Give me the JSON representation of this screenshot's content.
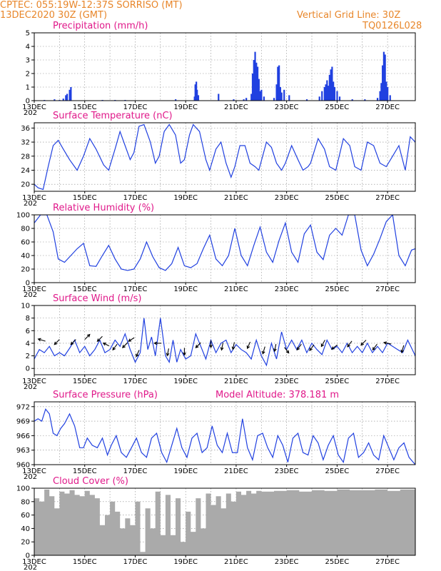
{
  "header": {
    "line1": "CPTEC:   055:19W-12:37S  SORRISO (MT)",
    "line2": "13DEC2020 30Z (GMT)",
    "grid_note": "Vertical Grid Line: 30Z",
    "code": "TQ0126L028"
  },
  "colors": {
    "header": "#e8862a",
    "title": "#e0198a",
    "line": "#2040e0",
    "bar": "#2040e0",
    "cloud": "#aaaaaa",
    "arrow": "#000000"
  },
  "x_axis": {
    "day_start": 13,
    "day_end": 28.1,
    "tick_days": [
      13,
      15,
      17,
      19,
      21,
      23,
      25,
      27
    ],
    "tick_labels": [
      "13DEC",
      "15DEC",
      "17DEC",
      "19DEC",
      "21DEC",
      "23DEC",
      "25DEC",
      "27DEC"
    ],
    "grid_days": [
      14,
      15,
      16,
      17,
      18,
      19,
      20,
      21,
      22,
      23,
      24,
      25,
      26,
      27
    ],
    "year_label": "202"
  },
  "chart_data": [
    {
      "id": "precip",
      "type": "bar",
      "title": "Precipitation (mm/h)",
      "ylim": [
        0,
        5
      ],
      "yticks": [
        0,
        1,
        2,
        3,
        4,
        5
      ],
      "x": [
        13.4,
        13.8,
        14.0,
        14.15,
        14.25,
        14.3,
        14.4,
        14.45,
        15.7,
        16.2,
        16.6,
        18.6,
        19.35,
        19.38,
        19.42,
        19.45,
        19.5,
        20.3,
        20.9,
        21.3,
        21.4,
        21.6,
        21.65,
        21.7,
        21.75,
        21.8,
        21.85,
        21.9,
        21.95,
        22.0,
        22.1,
        22.5,
        22.6,
        22.65,
        22.7,
        22.75,
        22.8,
        22.9,
        23.1,
        23.8,
        24.3,
        24.4,
        24.5,
        24.55,
        24.6,
        24.65,
        24.7,
        24.75,
        24.8,
        24.85,
        24.9,
        25.0,
        25.1,
        25.6,
        26.1,
        26.6,
        26.7,
        26.75,
        26.8,
        26.85,
        26.9,
        26.95,
        27.0,
        27.1
      ],
      "values": [
        0.05,
        0.1,
        0.05,
        0.15,
        0.4,
        0.5,
        0.8,
        1.0,
        0.05,
        0.05,
        0.05,
        0.1,
        0.3,
        1.2,
        1.4,
        0.8,
        0.4,
        0.5,
        0.1,
        0.1,
        0.2,
        0.5,
        2.0,
        3.0,
        3.6,
        2.8,
        2.5,
        1.6,
        0.7,
        0.8,
        0.3,
        0.2,
        1.2,
        2.5,
        2.6,
        1.0,
        0.6,
        0.8,
        0.4,
        0.1,
        0.3,
        0.7,
        1.0,
        1.2,
        1.5,
        1.1,
        1.9,
        2.3,
        2.5,
        1.4,
        1.0,
        0.7,
        0.3,
        0.1,
        0.1,
        0.2,
        0.7,
        1.3,
        2.6,
        3.6,
        3.4,
        1.4,
        1.0,
        0.4
      ]
    },
    {
      "id": "temp",
      "type": "line",
      "title": "Surface Temperature (nC)",
      "ylim": [
        18,
        37.5
      ],
      "yticks": [
        20,
        24,
        28,
        32,
        36
      ],
      "x": [
        13.0,
        13.15,
        13.35,
        13.55,
        13.75,
        13.95,
        14.15,
        14.4,
        14.7,
        14.95,
        15.2,
        15.45,
        15.75,
        15.95,
        16.2,
        16.4,
        16.6,
        16.8,
        16.95,
        17.15,
        17.35,
        17.6,
        17.8,
        17.95,
        18.15,
        18.35,
        18.6,
        18.8,
        18.95,
        19.15,
        19.3,
        19.55,
        19.8,
        19.95,
        20.2,
        20.4,
        20.6,
        20.8,
        20.95,
        21.15,
        21.35,
        21.55,
        21.75,
        21.9,
        22.2,
        22.4,
        22.6,
        22.8,
        22.95,
        23.2,
        23.45,
        23.65,
        23.85,
        23.95,
        24.25,
        24.5,
        24.7,
        24.95,
        25.25,
        25.5,
        25.7,
        25.95,
        26.2,
        26.45,
        26.7,
        26.95,
        27.2,
        27.45,
        27.7,
        27.9,
        28.1
      ],
      "values": [
        20,
        19,
        18.5,
        25,
        31,
        32.5,
        30,
        27,
        24,
        28,
        33,
        30,
        25.5,
        24,
        30,
        35,
        31,
        27,
        29,
        36.5,
        37,
        32,
        26,
        28,
        35,
        37,
        34,
        26,
        27,
        34,
        37,
        35,
        27,
        24,
        30,
        32,
        26,
        22,
        25,
        31,
        31,
        26,
        25,
        24,
        32,
        30.5,
        26,
        24,
        26,
        31,
        27,
        24,
        25,
        26,
        33,
        30,
        25,
        24,
        33,
        31,
        25,
        24,
        32,
        31,
        26,
        25,
        28,
        31,
        24,
        33.5,
        32
      ]
    },
    {
      "id": "rh",
      "type": "line",
      "title": "Relative Humidity (%)",
      "ylim": [
        0,
        100
      ],
      "yticks": [
        0,
        20,
        40,
        60,
        80,
        100
      ],
      "x": [
        13.0,
        13.25,
        13.5,
        13.75,
        13.95,
        14.2,
        14.45,
        14.7,
        14.95,
        15.2,
        15.45,
        15.7,
        15.95,
        16.2,
        16.45,
        16.7,
        16.95,
        17.2,
        17.45,
        17.7,
        17.95,
        18.2,
        18.45,
        18.7,
        18.95,
        19.2,
        19.45,
        19.7,
        19.95,
        20.2,
        20.45,
        20.7,
        20.95,
        21.2,
        21.45,
        21.7,
        21.95,
        22.2,
        22.45,
        22.7,
        22.95,
        23.2,
        23.45,
        23.7,
        23.95,
        24.2,
        24.45,
        24.7,
        24.95,
        25.2,
        25.45,
        25.7,
        25.95,
        26.2,
        26.45,
        26.7,
        26.95,
        27.2,
        27.45,
        27.7,
        27.95,
        28.1
      ],
      "values": [
        88,
        100,
        100,
        75,
        35,
        30,
        40,
        50,
        58,
        25,
        24,
        40,
        55,
        35,
        20,
        18,
        20,
        35,
        60,
        38,
        22,
        18,
        28,
        52,
        25,
        22,
        28,
        50,
        70,
        35,
        25,
        40,
        80,
        40,
        25,
        55,
        82,
        45,
        30,
        62,
        88,
        45,
        30,
        72,
        85,
        45,
        34,
        70,
        80,
        70,
        100,
        100,
        48,
        25,
        42,
        65,
        90,
        100,
        40,
        25,
        48,
        50
      ]
    },
    {
      "id": "wind",
      "type": "line",
      "title": "Surface Wind (m/s)",
      "ylim": [
        -1,
        10
      ],
      "yticks": [
        0,
        2,
        4,
        6,
        8,
        10
      ],
      "x": [
        13.0,
        13.2,
        13.4,
        13.6,
        13.8,
        14.0,
        14.2,
        14.4,
        14.6,
        14.8,
        15.0,
        15.2,
        15.4,
        15.6,
        15.8,
        16.0,
        16.2,
        16.4,
        16.6,
        16.8,
        17.0,
        17.2,
        17.35,
        17.5,
        17.65,
        17.8,
        18.0,
        18.2,
        18.35,
        18.5,
        18.65,
        18.8,
        19.0,
        19.2,
        19.4,
        19.6,
        19.8,
        20.0,
        20.2,
        20.4,
        20.6,
        20.8,
        21.0,
        21.2,
        21.4,
        21.6,
        21.8,
        22.0,
        22.2,
        22.4,
        22.6,
        22.8,
        23.0,
        23.2,
        23.4,
        23.6,
        23.8,
        24.0,
        24.2,
        24.4,
        24.6,
        24.8,
        25.0,
        25.2,
        25.4,
        25.6,
        25.8,
        26.0,
        26.2,
        26.4,
        26.6,
        26.8,
        27.0,
        27.2,
        27.4,
        27.6,
        27.8,
        28.1
      ],
      "values": [
        1.5,
        3,
        2.5,
        3.5,
        2,
        2.5,
        2,
        3.2,
        4.5,
        2.5,
        3.5,
        2,
        3,
        4.5,
        2.5,
        3,
        4.5,
        3.5,
        5.5,
        3,
        1,
        2.5,
        8,
        3,
        5,
        2,
        8,
        2,
        1,
        4.5,
        1,
        3,
        1.5,
        2,
        5.5,
        3.5,
        1.5,
        4.5,
        2.5,
        4,
        4.5,
        2.5,
        3.8,
        3,
        2.5,
        1.5,
        4.5,
        2,
        0.5,
        4,
        1.5,
        5.8,
        3,
        4.5,
        3,
        4.5,
        2.5,
        4,
        3,
        2.2,
        4.5,
        3,
        3.5,
        2.5,
        4,
        2.5,
        3.5,
        2.5,
        4,
        2.5,
        3.5,
        2.5,
        4,
        3.5,
        3,
        2.5,
        4.5,
        2
      ]
    },
    {
      "id": "pressure",
      "type": "line",
      "title": "Surface Pressure (hPa)",
      "note": "Model Altitude: 378.181  m",
      "ylim": [
        960,
        973
      ],
      "yticks": [
        960,
        963,
        966,
        969,
        972
      ],
      "x": [
        13.0,
        13.15,
        13.3,
        13.45,
        13.6,
        13.75,
        13.9,
        14.05,
        14.2,
        14.4,
        14.6,
        14.8,
        14.95,
        15.1,
        15.3,
        15.5,
        15.7,
        15.9,
        16.05,
        16.25,
        16.45,
        16.65,
        16.85,
        17.05,
        17.25,
        17.45,
        17.65,
        17.85,
        18.05,
        18.25,
        18.45,
        18.65,
        18.85,
        19.05,
        19.25,
        19.45,
        19.65,
        19.85,
        20.05,
        20.25,
        20.45,
        20.65,
        20.85,
        21.05,
        21.25,
        21.45,
        21.65,
        21.85,
        22.05,
        22.25,
        22.45,
        22.65,
        22.85,
        23.05,
        23.25,
        23.45,
        23.65,
        23.85,
        24.05,
        24.25,
        24.45,
        24.65,
        24.85,
        25.05,
        25.25,
        25.45,
        25.65,
        25.85,
        26.05,
        26.25,
        26.45,
        26.65,
        26.85,
        27.05,
        27.25,
        27.45,
        27.65,
        27.85,
        28.1
      ],
      "values": [
        969,
        969.5,
        969,
        971.5,
        970.5,
        966.5,
        966,
        967.5,
        968.5,
        970.5,
        968,
        963.5,
        963.5,
        965.5,
        964,
        963.5,
        965.5,
        962,
        964,
        966,
        962.5,
        961.5,
        963.5,
        965.5,
        962.5,
        961.5,
        965.5,
        966.5,
        962.5,
        960.5,
        964,
        967.5,
        963.5,
        961.5,
        965.5,
        966.5,
        962.5,
        963.5,
        968,
        964,
        962.5,
        966.5,
        962.5,
        962.5,
        969.5,
        963.5,
        961,
        966,
        966.5,
        963.5,
        961.5,
        966,
        964,
        960.5,
        965.5,
        966.5,
        962.5,
        962,
        966,
        964.5,
        961,
        964,
        966,
        962,
        960.5,
        965.5,
        966.5,
        961.5,
        962.5,
        964.5,
        962,
        961,
        966,
        963.5,
        961,
        963.5,
        964.5,
        961.5,
        960
      ]
    },
    {
      "id": "cloud",
      "type": "area",
      "title": "Cloud Cover (%)",
      "ylim": [
        0,
        100
      ],
      "yticks": [
        0,
        20,
        40,
        60,
        80,
        100
      ],
      "x": [
        13.0,
        13.2,
        13.4,
        13.6,
        13.8,
        14.0,
        14.2,
        14.4,
        14.6,
        14.8,
        15.0,
        15.2,
        15.4,
        15.6,
        15.8,
        16.0,
        16.2,
        16.4,
        16.6,
        16.8,
        17.0,
        17.2,
        17.4,
        17.6,
        17.8,
        18.0,
        18.2,
        18.4,
        18.6,
        18.8,
        19.0,
        19.2,
        19.4,
        19.6,
        19.8,
        20.0,
        20.2,
        20.4,
        20.6,
        20.8,
        21.0,
        21.2,
        21.4,
        21.6,
        21.8,
        22.0,
        22.5,
        23.0,
        23.5,
        24.0,
        24.5,
        25.0,
        25.5,
        26.0,
        26.5,
        27.0,
        27.5,
        28.1
      ],
      "values": [
        85,
        80,
        98,
        88,
        70,
        95,
        92,
        97,
        90,
        88,
        96,
        90,
        85,
        45,
        60,
        80,
        65,
        40,
        55,
        45,
        80,
        5,
        70,
        40,
        95,
        30,
        90,
        30,
        85,
        20,
        65,
        35,
        85,
        40,
        92,
        75,
        88,
        70,
        92,
        80,
        95,
        90,
        96,
        92,
        96,
        95,
        96,
        97,
        95,
        97,
        96,
        98,
        97,
        97,
        98,
        96,
        98,
        97
      ]
    }
  ],
  "wind_arrows": {
    "items": [
      {
        "x": 13.3,
        "y": 4.5,
        "dx": -1,
        "dy": 0.3
      },
      {
        "x": 13.9,
        "y": 4.2,
        "dx": -0.7,
        "dy": -0.7
      },
      {
        "x": 14.55,
        "y": 4.2,
        "dx": -0.7,
        "dy": -0.7
      },
      {
        "x": 15.1,
        "y": 5.0,
        "dx": 0.7,
        "dy": 0.7
      },
      {
        "x": 15.6,
        "y": 4.7,
        "dx": -0.7,
        "dy": -0.7
      },
      {
        "x": 15.85,
        "y": 3.8,
        "dx": -0.8,
        "dy": 0.4
      },
      {
        "x": 16.2,
        "y": 3.4,
        "dx": -0.6,
        "dy": -0.8
      },
      {
        "x": 16.6,
        "y": 3.7,
        "dx": -0.7,
        "dy": -0.7
      },
      {
        "x": 16.85,
        "y": 4.6,
        "dx": -0.8,
        "dy": -0.5
      },
      {
        "x": 17.1,
        "y": 2.4,
        "dx": -0.4,
        "dy": -0.9
      },
      {
        "x": 17.9,
        "y": 4.0,
        "dx": -1,
        "dy": 0
      },
      {
        "x": 18.3,
        "y": 2.6,
        "dx": -0.2,
        "dy": -1
      },
      {
        "x": 18.95,
        "y": 2.7,
        "dx": 0,
        "dy": -1
      },
      {
        "x": 19.5,
        "y": 3.7,
        "dx": -0.7,
        "dy": -0.7
      },
      {
        "x": 20.0,
        "y": 3.9,
        "dx": 0,
        "dy": -1
      },
      {
        "x": 20.45,
        "y": 3.5,
        "dx": -0.2,
        "dy": -1
      },
      {
        "x": 20.9,
        "y": 3.6,
        "dx": -0.2,
        "dy": -1
      },
      {
        "x": 21.5,
        "y": 3.7,
        "dx": -0.4,
        "dy": -0.9
      },
      {
        "x": 22.1,
        "y": 2.9,
        "dx": -0.3,
        "dy": -1
      },
      {
        "x": 22.55,
        "y": 3.3,
        "dx": -0.2,
        "dy": -1
      },
      {
        "x": 23.0,
        "y": 2.9,
        "dx": 0.6,
        "dy": -0.8
      },
      {
        "x": 23.5,
        "y": 3.4,
        "dx": -0.6,
        "dy": -0.8
      },
      {
        "x": 24.0,
        "y": 3.3,
        "dx": -0.6,
        "dy": -0.8
      },
      {
        "x": 24.45,
        "y": 4.0,
        "dx": -0.5,
        "dy": -0.9
      },
      {
        "x": 24.9,
        "y": 3.4,
        "dx": -0.8,
        "dy": -0.6
      },
      {
        "x": 25.5,
        "y": 3.9,
        "dx": -0.6,
        "dy": -0.8
      },
      {
        "x": 26.05,
        "y": 4.1,
        "dx": -0.7,
        "dy": -0.7
      },
      {
        "x": 26.5,
        "y": 3.4,
        "dx": -0.6,
        "dy": -0.8
      },
      {
        "x": 27.0,
        "y": 4.0,
        "dx": -1,
        "dy": 0.2
      },
      {
        "x": 27.6,
        "y": 3.1,
        "dx": -0.3,
        "dy": -1
      }
    ]
  }
}
